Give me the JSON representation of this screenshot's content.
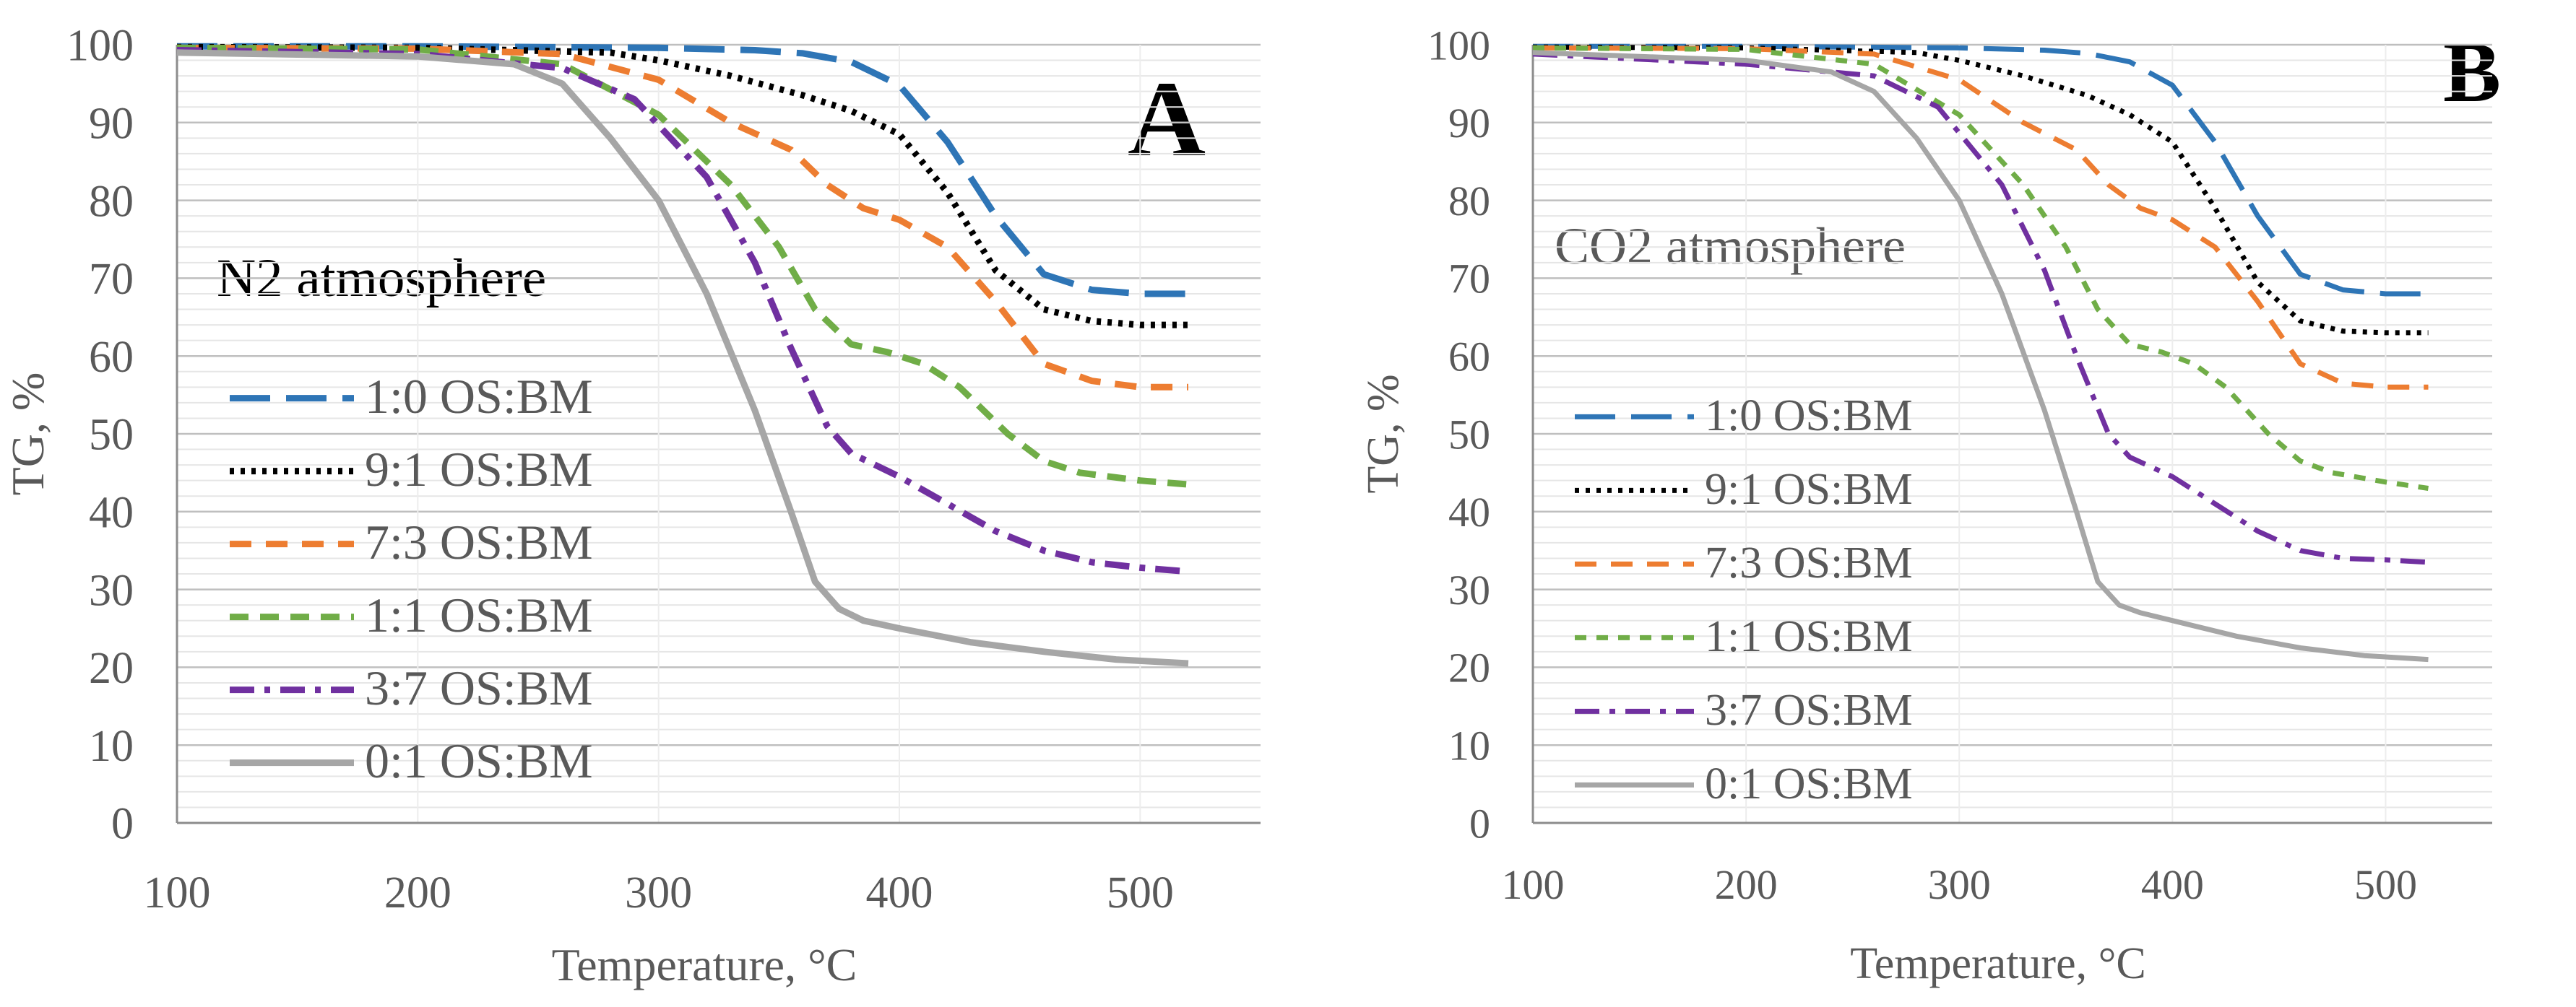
{
  "chart_data": [
    {
      "type": "line",
      "panel": "A",
      "annotation": "N2 atmosphere",
      "xlabel": "Temperature, °C",
      "ylabel": "TG, %",
      "xlim": [
        100,
        550
      ],
      "ylim": [
        0,
        100
      ],
      "xticks": [
        100,
        200,
        300,
        400,
        500
      ],
      "yticks": [
        0,
        10,
        20,
        30,
        40,
        50,
        60,
        70,
        80,
        90,
        100
      ],
      "legend_position": "left",
      "series": [
        {
          "name": "1:0 OS:BM",
          "color": "#2e75b6",
          "dash": "long-dash",
          "x": [
            100,
            200,
            300,
            340,
            360,
            380,
            400,
            420,
            440,
            460,
            480,
            500,
            520
          ],
          "y": [
            99.8,
            99.8,
            99.6,
            99.3,
            98.9,
            97.8,
            94.8,
            87.5,
            78,
            70.5,
            68.5,
            68,
            68
          ]
        },
        {
          "name": "9:1 OS:BM",
          "color": "#000000",
          "dash": "dotted",
          "x": [
            100,
            200,
            280,
            300,
            330,
            360,
            380,
            400,
            420,
            440,
            460,
            480,
            500,
            520
          ],
          "y": [
            99.7,
            99.6,
            99,
            98,
            96,
            93.5,
            91.5,
            88.5,
            81,
            71,
            66,
            64.5,
            64,
            64
          ]
        },
        {
          "name": "7:3 OS:BM",
          "color": "#ed7d31",
          "dash": "dash",
          "x": [
            100,
            200,
            260,
            300,
            330,
            355,
            370,
            385,
            400,
            420,
            440,
            460,
            480,
            500,
            520
          ],
          "y": [
            99.6,
            99.5,
            98.8,
            95.5,
            90,
            86.5,
            82,
            79,
            77.5,
            74,
            67,
            59,
            56.8,
            56,
            56
          ]
        },
        {
          "name": "1:1 OS:BM",
          "color": "#70ad47",
          "dash": "medium-dash",
          "x": [
            100,
            200,
            260,
            300,
            330,
            350,
            365,
            380,
            395,
            410,
            425,
            445,
            460,
            475,
            500,
            520
          ],
          "y": [
            99.6,
            99.4,
            97.5,
            91,
            82,
            74,
            66,
            61.5,
            60.5,
            59,
            56,
            50,
            46.5,
            45,
            44,
            43.5
          ]
        },
        {
          "name": "3:7 OS:BM",
          "color": "#7030a0",
          "dash": "dash-dot",
          "x": [
            100,
            200,
            260,
            290,
            320,
            340,
            355,
            370,
            380,
            400,
            420,
            440,
            460,
            480,
            500,
            520
          ],
          "y": [
            99.3,
            98.8,
            97,
            93,
            83,
            72,
            61,
            51,
            47.5,
            44.5,
            41,
            37.5,
            35,
            33.5,
            32.8,
            32.3
          ]
        },
        {
          "name": "0:1 OS:BM",
          "color": "#a6a6a6",
          "dash": "solid",
          "x": [
            100,
            200,
            240,
            260,
            280,
            300,
            320,
            340,
            355,
            365,
            375,
            385,
            400,
            430,
            460,
            490,
            520
          ],
          "y": [
            99,
            98.5,
            97.5,
            95,
            88,
            80,
            68,
            53,
            40,
            31,
            27.5,
            26,
            25,
            23.2,
            22,
            21,
            20.5
          ]
        }
      ]
    },
    {
      "type": "line",
      "panel": "B",
      "annotation": "CO2 atmosphere",
      "xlabel": "Temperature, °C",
      "ylabel": "TG, %",
      "xlim": [
        100,
        550
      ],
      "ylim": [
        0,
        100
      ],
      "xticks": [
        100,
        200,
        300,
        400,
        500
      ],
      "yticks": [
        0,
        10,
        20,
        30,
        40,
        50,
        60,
        70,
        80,
        90,
        100
      ],
      "legend_position": "left",
      "series": [
        {
          "name": "1:0 OS:BM",
          "color": "#2e75b6",
          "dash": "long-dash",
          "x": [
            100,
            200,
            300,
            340,
            360,
            380,
            400,
            420,
            440,
            460,
            480,
            500,
            520
          ],
          "y": [
            99.8,
            99.8,
            99.6,
            99.3,
            98.9,
            97.8,
            94.8,
            87.5,
            78,
            70.5,
            68.5,
            68,
            68
          ]
        },
        {
          "name": "9:1 OS:BM",
          "color": "#000000",
          "dash": "dotted",
          "x": [
            100,
            200,
            280,
            300,
            330,
            360,
            380,
            400,
            420,
            440,
            460,
            480,
            500,
            520
          ],
          "y": [
            99.7,
            99.6,
            99,
            98,
            96,
            93.5,
            91,
            87.5,
            79,
            69.5,
            64.5,
            63.2,
            63,
            63
          ]
        },
        {
          "name": "7:3 OS:BM",
          "color": "#ed7d31",
          "dash": "dash",
          "x": [
            100,
            200,
            260,
            300,
            330,
            355,
            370,
            385,
            400,
            420,
            440,
            460,
            480,
            500,
            520
          ],
          "y": [
            99.6,
            99.5,
            98.8,
            95.5,
            90,
            86.5,
            82,
            79,
            77.5,
            74,
            67,
            59,
            56.5,
            56,
            56
          ]
        },
        {
          "name": "1:1 OS:BM",
          "color": "#70ad47",
          "dash": "short-dash",
          "x": [
            100,
            200,
            260,
            300,
            330,
            350,
            365,
            380,
            395,
            410,
            425,
            445,
            460,
            475,
            500,
            520
          ],
          "y": [
            99.6,
            99.4,
            97.5,
            91,
            82,
            74,
            66,
            61.5,
            60.5,
            59,
            56,
            50,
            46.5,
            45,
            43.8,
            43
          ]
        },
        {
          "name": "3:7 OS:BM",
          "color": "#7030a0",
          "dash": "dash-dot",
          "x": [
            100,
            200,
            260,
            290,
            320,
            340,
            355,
            370,
            380,
            400,
            420,
            440,
            460,
            480,
            500,
            520
          ],
          "y": [
            98.8,
            97.5,
            96,
            92,
            82,
            71,
            60,
            50,
            47,
            44.5,
            41,
            37.5,
            35,
            34,
            33.8,
            33.5
          ]
        },
        {
          "name": "0:1 OS:BM",
          "color": "#a6a6a6",
          "dash": "solid",
          "x": [
            100,
            200,
            240,
            260,
            280,
            300,
            320,
            340,
            355,
            365,
            375,
            385,
            400,
            430,
            460,
            490,
            520
          ],
          "y": [
            99,
            98,
            96.5,
            94,
            88,
            80,
            68,
            53,
            40,
            31,
            28,
            27,
            26,
            24,
            22.5,
            21.5,
            21
          ]
        }
      ]
    }
  ]
}
